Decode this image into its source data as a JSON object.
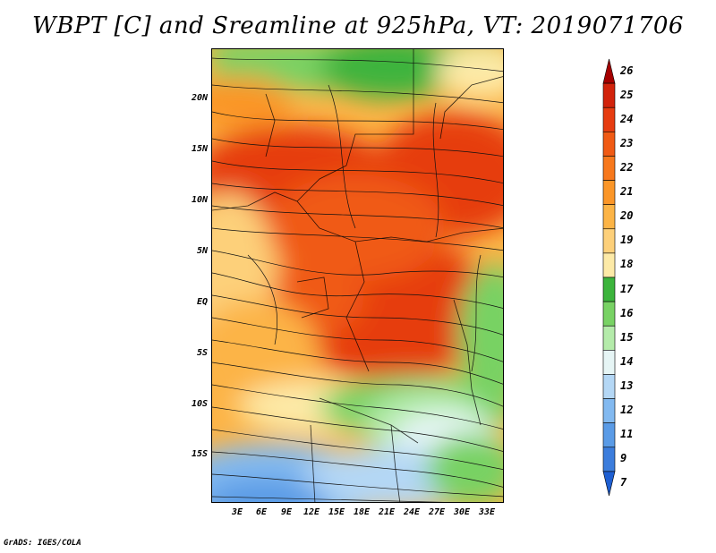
{
  "title": "WBPT [C] and Sreamline at 925hPa, VT: 2019071706",
  "footer": "GrADS: IGES/COLA",
  "map": {
    "lat_labels": [
      "20N",
      "15N",
      "10N",
      "5N",
      "EQ",
      "5S",
      "10S",
      "15S"
    ],
    "lon_labels": [
      "3E",
      "6E",
      "9E",
      "12E",
      "15E",
      "18E",
      "21E",
      "24E",
      "27E",
      "30E",
      "33E"
    ]
  },
  "colorbar": {
    "labels": [
      "26",
      "25",
      "24",
      "23",
      "22",
      "21",
      "20",
      "19",
      "18",
      "17",
      "16",
      "15",
      "14",
      "13",
      "12",
      "11",
      "9",
      "7"
    ],
    "colors": [
      "#a50000",
      "#d2230b",
      "#e63c10",
      "#f05a14",
      "#f7781c",
      "#fb9628",
      "#fcb446",
      "#fdd07a",
      "#fdeaa7",
      "#3cb43c",
      "#78d264",
      "#b4ebaa",
      "#e6f5f5",
      "#b4d7f5",
      "#82b9f0",
      "#5a9be6",
      "#3c7ddc",
      "#1e5fd2"
    ]
  }
}
